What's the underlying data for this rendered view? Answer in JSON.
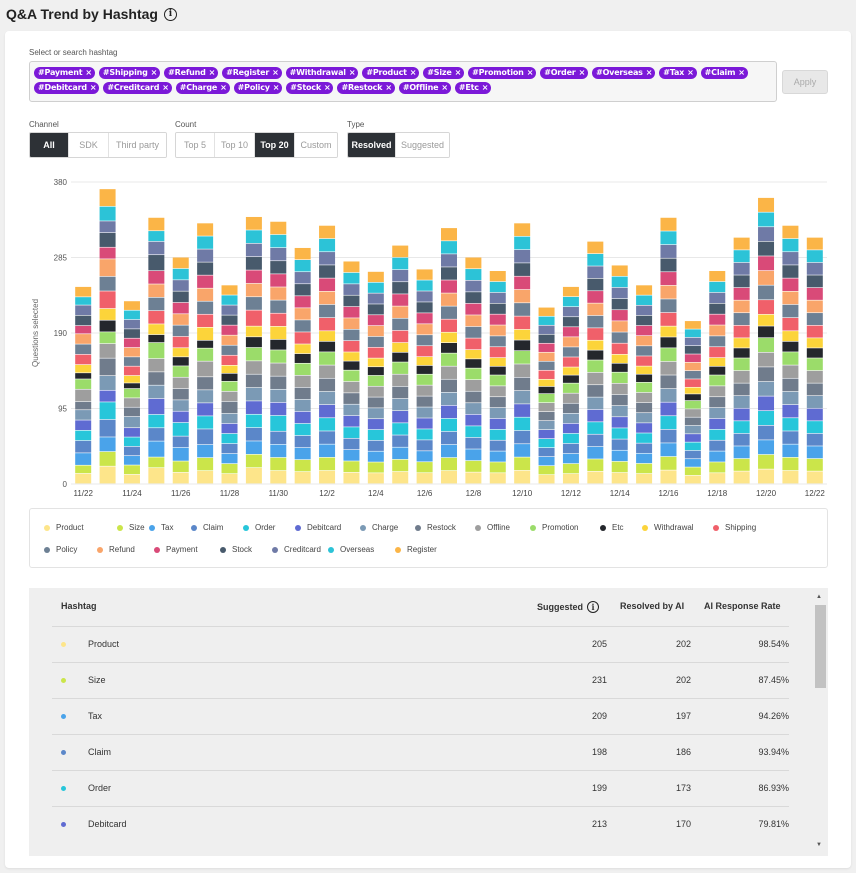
{
  "title": "Q&A Trend by Hashtag",
  "hashtag_select": {
    "label": "Select or search hashtag",
    "tags": [
      "#Payment",
      "#Shipping",
      "#Refund",
      "#Register",
      "#Withdrawal",
      "#Product",
      "#Size",
      "#Promotion",
      "#Order",
      "#Overseas",
      "#Tax",
      "#Claim",
      "#Debitcard",
      "#Creditcard",
      "#Charge",
      "#Policy",
      "#Stock",
      "#Restock",
      "#Offline",
      "#Etc"
    ],
    "apply_label": "Apply"
  },
  "filters": {
    "channel": {
      "label": "Channel",
      "options": [
        "All",
        "SDK",
        "Third party"
      ],
      "selected": "All"
    },
    "count": {
      "label": "Count",
      "options": [
        "Top 5",
        "Top 10",
        "Top 20",
        "Custom"
      ],
      "selected": "Top 20"
    },
    "type": {
      "label": "Type",
      "options": [
        "Resolved",
        "Suggested"
      ],
      "selected": "Resolved"
    }
  },
  "colors": {
    "Product": "#fde58a",
    "Size": "#cbe54a",
    "Tax": "#4aa3ea",
    "Claim": "#5b87c9",
    "Order": "#27c6da",
    "Debitcard": "#5f6bd2",
    "Charge": "#7b9ab5",
    "Restock": "#707c8c",
    "Offline": "#9e9e9e",
    "Promotion": "#9bdc6a",
    "Etc": "#24272c",
    "Withdrawal": "#fcd43a",
    "Shipping": "#f0606a",
    "Policy": "#6d8094",
    "Refund": "#f9a56a",
    "Payment": "#d94a78",
    "Stock": "#485a6c",
    "Creditcard": "#6f7aa6",
    "Overseas": "#2cc3d7",
    "Register": "#fbb547",
    "accent": "#7b19d8"
  },
  "chart_data": {
    "type": "bar",
    "stacked": true,
    "ylabel": "Questions selected",
    "ylim": [
      0,
      380
    ],
    "yticks": [
      0,
      95,
      190,
      285,
      380
    ],
    "x": [
      "11/22",
      "11/23",
      "11/24",
      "11/25",
      "11/26",
      "11/27",
      "11/28",
      "11/29",
      "11/30",
      "12/1",
      "12/2",
      "12/3",
      "12/4",
      "12/5",
      "12/6",
      "12/7",
      "12/8",
      "12/9",
      "12/10",
      "12/11",
      "12/12",
      "12/13",
      "12/14",
      "12/15",
      "12/16",
      "12/17",
      "12/18",
      "12/19",
      "12/20",
      "12/21",
      "12/22"
    ],
    "xtick_labels": [
      "11/22",
      "",
      "11/24",
      "",
      "11/26",
      "",
      "11/28",
      "",
      "11/30",
      "",
      "12/2",
      "",
      "12/4",
      "",
      "12/6",
      "",
      "12/8",
      "",
      "12/10",
      "",
      "12/12",
      "",
      "12/14",
      "",
      "12/16",
      "",
      "12/18",
      "",
      "12/20",
      "",
      "12/22"
    ],
    "totals": [
      248,
      371,
      230,
      335,
      285,
      328,
      250,
      336,
      330,
      297,
      325,
      280,
      267,
      300,
      270,
      322,
      285,
      268,
      328,
      222,
      248,
      305,
      275,
      250,
      335,
      205,
      268,
      310,
      360,
      325,
      310
    ],
    "series_order": [
      "Product",
      "Size",
      "Tax",
      "Claim",
      "Order",
      "Debitcard",
      "Charge",
      "Restock",
      "Offline",
      "Promotion",
      "Etc",
      "Withdrawal",
      "Shipping",
      "Policy",
      "Refund",
      "Payment",
      "Stock",
      "Creditcard",
      "Overseas",
      "Register"
    ],
    "weights": [
      [
        5,
        4,
        6,
        6,
        5,
        5,
        5,
        4,
        6,
        5,
        3,
        4,
        5,
        5,
        5,
        4,
        5,
        5,
        4,
        5
      ],
      [
        6,
        5,
        5,
        6,
        6,
        4,
        5,
        6,
        5,
        4,
        4,
        4,
        6,
        5,
        6,
        4,
        5,
        4,
        5,
        6
      ],
      [
        5,
        5,
        5,
        5,
        5,
        5,
        6,
        5,
        5,
        5,
        3,
        4,
        5,
        5,
        5,
        5,
        5,
        5,
        5,
        5
      ],
      [
        6,
        4,
        6,
        5,
        5,
        6,
        5,
        5,
        5,
        6,
        3,
        4,
        5,
        5,
        5,
        5,
        6,
        5,
        4,
        5
      ],
      [
        5,
        5,
        6,
        5,
        6,
        5,
        5,
        5,
        5,
        5,
        4,
        4,
        5,
        5,
        5,
        5,
        5,
        5,
        5,
        5
      ],
      [
        5,
        5,
        5,
        6,
        5,
        5,
        5,
        5,
        6,
        5,
        3,
        5,
        5,
        5,
        5,
        5,
        5,
        5,
        5,
        5
      ],
      [
        5,
        5,
        5,
        5,
        5,
        5,
        5,
        6,
        5,
        5,
        4,
        4,
        5,
        5,
        5,
        5,
        5,
        5,
        5,
        5
      ],
      [
        6,
        5,
        5,
        5,
        5,
        5,
        5,
        5,
        5,
        5,
        4,
        4,
        6,
        5,
        5,
        5,
        5,
        5,
        5,
        5
      ],
      [
        5,
        5,
        5,
        5,
        6,
        5,
        5,
        5,
        5,
        5,
        4,
        5,
        5,
        5,
        5,
        5,
        5,
        5,
        5,
        5
      ],
      [
        5,
        5,
        5,
        5,
        5,
        5,
        5,
        5,
        5,
        5,
        4,
        4,
        5,
        5,
        5,
        5,
        5,
        5,
        5,
        5
      ],
      [
        5,
        5,
        5,
        5,
        5,
        5,
        5,
        5,
        5,
        5,
        4,
        4,
        5,
        5,
        5,
        5,
        5,
        5,
        5,
        5
      ],
      [
        5,
        5,
        5,
        5,
        5,
        5,
        5,
        5,
        5,
        5,
        4,
        4,
        5,
        5,
        5,
        5,
        5,
        5,
        5,
        5
      ],
      [
        5,
        5,
        5,
        5,
        5,
        5,
        5,
        5,
        5,
        5,
        4,
        4,
        5,
        5,
        5,
        5,
        5,
        5,
        5,
        5
      ],
      [
        5,
        5,
        5,
        5,
        5,
        5,
        5,
        5,
        5,
        5,
        4,
        4,
        5,
        5,
        5,
        5,
        5,
        5,
        5,
        5
      ],
      [
        5,
        5,
        5,
        5,
        5,
        5,
        5,
        5,
        5,
        5,
        4,
        4,
        5,
        5,
        5,
        5,
        5,
        5,
        5,
        5
      ],
      [
        5,
        5,
        5,
        5,
        5,
        5,
        5,
        5,
        5,
        5,
        4,
        4,
        5,
        5,
        5,
        5,
        5,
        5,
        5,
        5
      ],
      [
        5,
        5,
        5,
        5,
        5,
        5,
        5,
        5,
        5,
        5,
        4,
        4,
        5,
        5,
        5,
        5,
        5,
        5,
        5,
        5
      ],
      [
        5,
        5,
        5,
        5,
        5,
        5,
        5,
        5,
        5,
        5,
        4,
        4,
        5,
        5,
        5,
        5,
        5,
        5,
        5,
        5
      ],
      [
        5,
        5,
        5,
        5,
        5,
        5,
        5,
        5,
        5,
        5,
        4,
        4,
        5,
        5,
        5,
        5,
        5,
        5,
        5,
        5
      ],
      [
        5,
        5,
        5,
        5,
        5,
        5,
        5,
        5,
        5,
        5,
        4,
        4,
        5,
        5,
        5,
        5,
        5,
        5,
        5,
        5
      ],
      [
        5,
        5,
        5,
        5,
        5,
        5,
        5,
        5,
        5,
        5,
        4,
        4,
        5,
        5,
        5,
        5,
        5,
        5,
        5,
        5
      ],
      [
        5,
        5,
        5,
        5,
        5,
        5,
        5,
        5,
        5,
        5,
        4,
        4,
        5,
        5,
        5,
        5,
        5,
        5,
        5,
        5
      ],
      [
        5,
        5,
        5,
        5,
        5,
        5,
        5,
        5,
        5,
        5,
        4,
        4,
        5,
        5,
        5,
        5,
        5,
        5,
        5,
        5
      ],
      [
        5,
        5,
        5,
        5,
        5,
        5,
        5,
        5,
        5,
        5,
        4,
        4,
        5,
        5,
        5,
        5,
        5,
        5,
        5,
        5
      ],
      [
        5,
        5,
        5,
        5,
        5,
        5,
        5,
        5,
        5,
        5,
        4,
        4,
        5,
        5,
        5,
        5,
        5,
        5,
        5,
        5
      ],
      [
        5,
        5,
        5,
        5,
        5,
        5,
        5,
        5,
        5,
        5,
        4,
        4,
        5,
        5,
        5,
        5,
        5,
        5,
        5,
        5
      ],
      [
        5,
        5,
        5,
        5,
        5,
        5,
        5,
        5,
        5,
        5,
        4,
        4,
        5,
        5,
        5,
        5,
        5,
        5,
        5,
        5
      ],
      [
        5,
        5,
        5,
        5,
        5,
        5,
        5,
        5,
        5,
        5,
        4,
        4,
        5,
        5,
        5,
        5,
        5,
        5,
        5,
        5
      ],
      [
        5,
        5,
        5,
        5,
        5,
        5,
        5,
        5,
        5,
        5,
        4,
        4,
        5,
        5,
        5,
        5,
        5,
        5,
        5,
        5
      ],
      [
        5,
        5,
        5,
        5,
        5,
        5,
        5,
        5,
        5,
        5,
        4,
        4,
        5,
        5,
        5,
        5,
        5,
        5,
        5,
        5
      ],
      [
        5,
        5,
        5,
        5,
        5,
        5,
        5,
        5,
        5,
        5,
        4,
        4,
        5,
        5,
        5,
        5,
        5,
        5,
        5,
        5
      ]
    ],
    "legend": [
      "Product",
      "Size",
      "Tax",
      "Claim",
      "Order",
      "Debitcard",
      "Charge",
      "Restock",
      "Offline",
      "Promotion",
      "Etc",
      "Withdrawal",
      "Shipping",
      "Policy",
      "Refund",
      "Payment",
      "Stock",
      "Creditcard",
      "Overseas",
      "Register"
    ],
    "grid": true,
    "legend_placement": "bottom"
  },
  "table": {
    "headers": {
      "hashtag": "Hashtag",
      "suggested": "Suggested",
      "resolved": "Resolved by AI",
      "rate": "AI Response Rate"
    },
    "rows": [
      {
        "name": "Product",
        "suggested": "205",
        "resolved": "202",
        "rate": "98.54%",
        "color": "#fde58a"
      },
      {
        "name": "Size",
        "suggested": "231",
        "resolved": "202",
        "rate": "87.45%",
        "color": "#cbe54a"
      },
      {
        "name": "Tax",
        "suggested": "209",
        "resolved": "197",
        "rate": "94.26%",
        "color": "#4aa3ea"
      },
      {
        "name": "Claim",
        "suggested": "198",
        "resolved": "186",
        "rate": "93.94%",
        "color": "#5b87c9"
      },
      {
        "name": "Order",
        "suggested": "199",
        "resolved": "173",
        "rate": "86.93%",
        "color": "#27c6da"
      },
      {
        "name": "Debitcard",
        "suggested": "213",
        "resolved": "170",
        "rate": "79.81%",
        "color": "#5f6bd2"
      }
    ]
  }
}
